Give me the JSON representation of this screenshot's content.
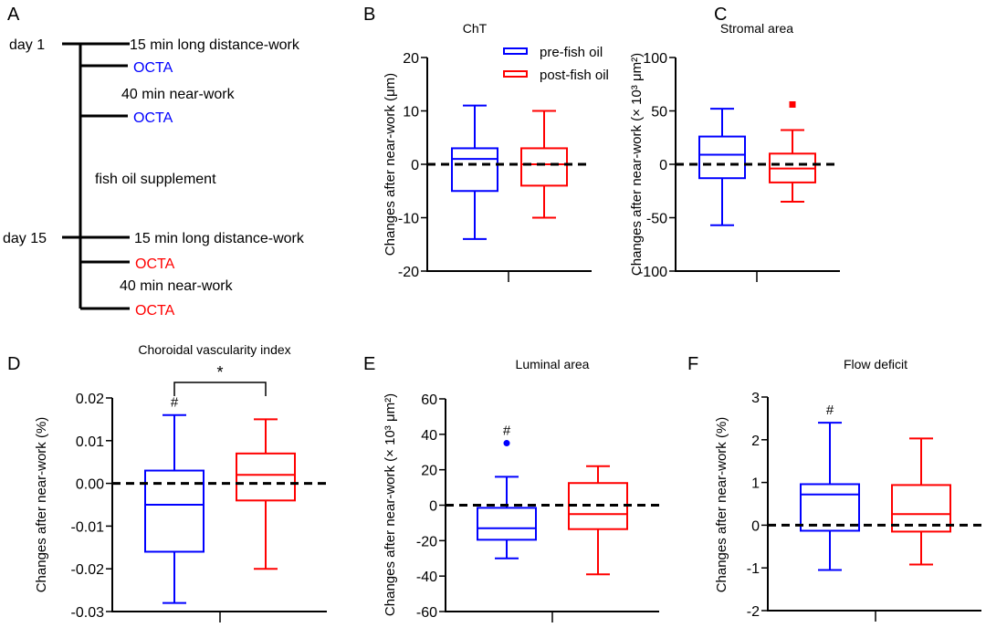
{
  "panel_letters": [
    "A",
    "B",
    "C",
    "D",
    "E",
    "F"
  ],
  "timeline": {
    "day1": "day 1",
    "day15": "day 15",
    "steps_before": [
      "15 min long distance-work",
      "OCTA",
      "40 min near-work",
      "OCTA"
    ],
    "middle": "fish oil supplement",
    "steps_after": [
      "15 min long distance-work",
      "OCTA",
      "40 min near-work",
      "OCTA"
    ],
    "before_color": "#0000ff",
    "after_color": "#ff0000"
  },
  "legend": {
    "pre": "pre-fish oil",
    "post": "post-fish oil"
  },
  "colors": {
    "pre": "#0000ff",
    "post": "#ff0000",
    "reference_line": "#000000"
  },
  "chart_data": [
    {
      "type": "box",
      "panel": "B",
      "title": "ChT",
      "ylabel": "Changes after near-work (μm)",
      "ylim": [
        -20,
        20
      ],
      "yticks": [
        "20",
        "10",
        "0",
        "-10",
        "-20"
      ],
      "reference_line": 0,
      "series": [
        {
          "name": "pre-fish oil",
          "whisker_low": -14,
          "q1": -5,
          "median": 1,
          "q3": 3,
          "whisker_high": 11,
          "outliers": [],
          "annotation": ""
        },
        {
          "name": "post-fish oil",
          "whisker_low": -10,
          "q1": -4,
          "median": 0,
          "q3": 3,
          "whisker_high": 10,
          "outliers": [],
          "annotation": ""
        }
      ]
    },
    {
      "type": "box",
      "panel": "C",
      "title": "Stromal area",
      "ylabel": "Changes after near-work (× 10³ μm²)",
      "ylim": [
        -100,
        100
      ],
      "yticks": [
        "100",
        "50",
        "0",
        "-50",
        "-100"
      ],
      "reference_line": 0,
      "series": [
        {
          "name": "pre-fish oil",
          "whisker_low": -57,
          "q1": -13,
          "median": 9,
          "q3": 26,
          "whisker_high": 52,
          "outliers": [],
          "annotation": ""
        },
        {
          "name": "post-fish oil",
          "whisker_low": -35,
          "q1": -17,
          "median": -4,
          "q3": 10,
          "whisker_high": 32,
          "outliers": [
            56
          ],
          "annotation": ""
        }
      ]
    },
    {
      "type": "box",
      "panel": "D",
      "title": "Choroidal vascularity index",
      "ylabel": "Changes after near-work (%)",
      "ylim": [
        -0.03,
        0.02
      ],
      "yticks": [
        "0.02",
        "0.01",
        "0.00",
        "-0.01",
        "-0.02",
        "-0.03"
      ],
      "reference_line": 0,
      "significance": "*",
      "series": [
        {
          "name": "pre-fish oil",
          "whisker_low": -0.028,
          "q1": -0.016,
          "median": -0.005,
          "q3": 0.003,
          "whisker_high": 0.016,
          "outliers": [],
          "annotation": "#"
        },
        {
          "name": "post-fish oil",
          "whisker_low": -0.02,
          "q1": -0.004,
          "median": 0.002,
          "q3": 0.007,
          "whisker_high": 0.015,
          "outliers": [],
          "annotation": ""
        }
      ]
    },
    {
      "type": "box",
      "panel": "E",
      "title": "Luminal area",
      "ylabel": "Changes after near-work (× 10³ μm²)",
      "ylim": [
        -60,
        60
      ],
      "yticks": [
        "60",
        "40",
        "20",
        "0",
        "-20",
        "-40",
        "-60"
      ],
      "reference_line": 0,
      "series": [
        {
          "name": "pre-fish oil",
          "whisker_low": -30,
          "q1": -19.5,
          "median": -13,
          "q3": -1.5,
          "whisker_high": 16,
          "outliers": [
            35
          ],
          "annotation": "#"
        },
        {
          "name": "post-fish oil",
          "whisker_low": -39,
          "q1": -13.5,
          "median": -5,
          "q3": 12.5,
          "whisker_high": 22,
          "outliers": [],
          "annotation": ""
        }
      ]
    },
    {
      "type": "box",
      "panel": "F",
      "title": "Flow deficit",
      "ylabel": "Changes after near-work (%)",
      "ylim": [
        -2,
        3
      ],
      "yticks": [
        "3",
        "2",
        "1",
        "0",
        "-1",
        "-2"
      ],
      "reference_line": 0,
      "series": [
        {
          "name": "pre-fish oil",
          "whisker_low": -1.05,
          "q1": -0.13,
          "median": 0.72,
          "q3": 0.96,
          "whisker_high": 2.4,
          "outliers": [],
          "annotation": "#"
        },
        {
          "name": "post-fish oil",
          "whisker_low": -0.92,
          "q1": -0.15,
          "median": 0.26,
          "q3": 0.94,
          "whisker_high": 2.03,
          "outliers": [],
          "annotation": ""
        }
      ]
    }
  ]
}
